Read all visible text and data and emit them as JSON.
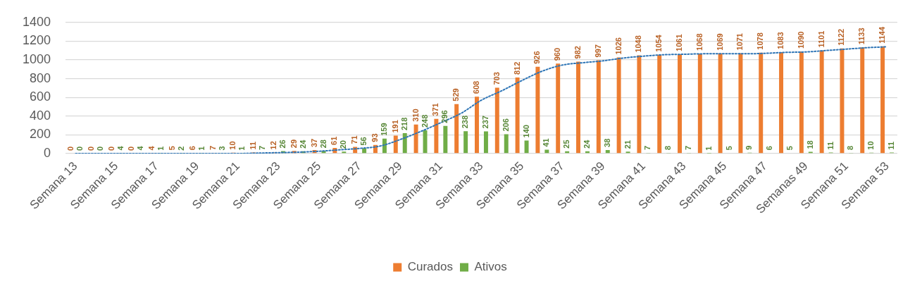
{
  "chart_data": {
    "type": "bar",
    "categories": [
      "Semana 13",
      null,
      "Semana 15",
      null,
      "Semana 17",
      null,
      "Semana 19",
      null,
      "Semana 21",
      null,
      "Semana 23",
      null,
      "Semana 25",
      null,
      "Semana 27",
      null,
      "Semana 29",
      null,
      "Semana 31",
      null,
      "Semana 33",
      null,
      "Semana 35",
      null,
      "Semana 37",
      null,
      "Semana 39",
      null,
      "Semana 41",
      null,
      "Semana 43",
      null,
      "Semana 45",
      null,
      "Semana 47",
      null,
      "Semanas 49",
      null,
      "Semana 51",
      null,
      "Semana 53"
    ],
    "series": [
      {
        "name": "Curados",
        "color": "#ed7d31",
        "values": [
          0,
          0,
          0,
          0,
          4,
          5,
          6,
          7,
          10,
          11,
          12,
          29,
          37,
          61,
          71,
          93,
          191,
          310,
          371,
          529,
          608,
          703,
          812,
          926,
          960,
          982,
          997,
          1026,
          1048,
          1054,
          1061,
          1068,
          1069,
          1071,
          1078,
          1083,
          1090,
          1101,
          1122,
          1133,
          1144
        ],
        "value_labels": [
          "0",
          "0",
          "0",
          "0",
          "4",
          "5",
          "6",
          "7",
          "10",
          "11",
          "12",
          "29",
          "37",
          "61",
          "71",
          "93",
          "191",
          "310",
          "371",
          "529",
          "608",
          "703",
          "812",
          "926",
          "960",
          "982",
          "997",
          "1026",
          "1048",
          "1054",
          "1061",
          "1068",
          "1069",
          "1071",
          "1078",
          "1083",
          "1090",
          "1101",
          "1122",
          "1133",
          "1144"
        ]
      },
      {
        "name": "Ativos",
        "color": "#70ad47",
        "values": [
          0,
          0,
          4,
          4,
          1,
          2,
          1,
          3,
          1,
          7,
          26,
          24,
          28,
          20,
          56,
          159,
          218,
          248,
          296,
          238,
          237,
          206,
          140,
          41,
          25,
          24,
          38,
          21,
          7,
          8,
          7,
          1,
          5,
          9,
          6,
          5,
          18,
          11,
          8,
          10,
          11
        ],
        "value_labels": [
          "0",
          "0",
          "4",
          "4",
          "1",
          "2",
          "1",
          "3",
          "1",
          "7",
          "26",
          "24",
          "28",
          "20",
          "56",
          "159",
          "218",
          "248",
          "296",
          "238",
          "237",
          "206",
          "140",
          "41",
          "25",
          "24",
          "38",
          "21",
          "7",
          "8",
          "7",
          "1",
          "5",
          "9",
          "6",
          "5",
          "18",
          "11",
          "8",
          "10",
          "11"
        ]
      },
      {
        "type": "line",
        "color": "#2e75b6",
        "line_style": "dotted",
        "marker": "none",
        "values": [
          0,
          0,
          0,
          0,
          0,
          0,
          0,
          0,
          0,
          5,
          10,
          15,
          25,
          40,
          55,
          80,
          150,
          235,
          330,
          430,
          570,
          670,
          780,
          880,
          945,
          970,
          990,
          1020,
          1040,
          1055,
          1060,
          1065,
          1065,
          1065,
          1070,
          1080,
          1085,
          1100,
          1115,
          1130,
          1140
        ]
      }
    ],
    "ylim": [
      0,
      1400
    ],
    "yticks": [
      0,
      200,
      400,
      600,
      800,
      1000,
      1200,
      1400
    ],
    "grid": "y",
    "legend": "bottom"
  }
}
